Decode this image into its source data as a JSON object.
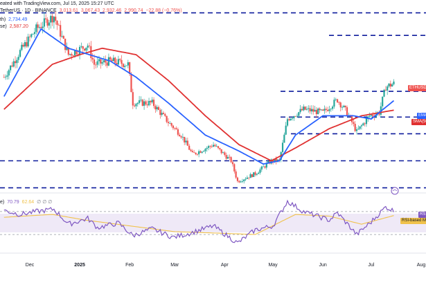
{
  "header": {
    "line1": "eated with TradingView.com, Jul 15, 2025 15:27 UTC",
    "line2_symbol": "TetherUS · 1D · BINANCE",
    "line2_o": "3,013.61",
    "line2_h": "3,067.43",
    "line2_l": "2,932.46",
    "line2_c": "2,990.74",
    "line2_chg": "−22.88 (−0.76%)",
    "line3_label": "th)",
    "line3_value": "2,734.49",
    "line4_label": "se)",
    "line4_value": "2,587.20"
  },
  "rsi_header": {
    "label": "e)",
    "value1": "70.79",
    "value2": "62.64",
    "extra": "∅ ∅ ∅"
  },
  "tags": {
    "price": "ETHUSD",
    "ema": "EMA",
    "sma": "SMA(50)",
    "rsi": "RS",
    "rsi_ma": "RSI-based M"
  },
  "colors": {
    "up": "#26a69a",
    "down": "#ef5350",
    "ema": "#2962ff",
    "sma": "#e03131",
    "rsi": "#7e57c2",
    "rsi_ma": "#f0c24b",
    "support": "#0d1b9c"
  },
  "chart_data": {
    "type": "candlestick",
    "x_ticks": [
      "Dec",
      "2025",
      "Feb",
      "Mar",
      "Apr",
      "May",
      "Jun",
      "Jul",
      "Aug"
    ],
    "x_tick_dates": [
      "2024-12-01",
      "2025-01-01",
      "2025-02-01",
      "2025-03-01",
      "2025-04-01",
      "2025-05-01",
      "2025-06-01",
      "2025-07-01",
      "2025-08-01"
    ],
    "price_range": [
      1300,
      4300
    ],
    "horizontal_levels": [
      4100,
      3750,
      2880,
      2480,
      2220,
      1800,
      1380
    ],
    "price_anchors": [
      [
        "2024-11-15",
        3100
      ],
      [
        "2024-11-25",
        3500
      ],
      [
        "2024-12-05",
        3850
      ],
      [
        "2024-12-16",
        4050
      ],
      [
        "2024-12-25",
        3450
      ],
      [
        "2025-01-06",
        3600
      ],
      [
        "2025-01-10",
        3300
      ],
      [
        "2025-01-20",
        3350
      ],
      [
        "2025-01-31",
        3300
      ],
      [
        "2025-02-03",
        2700
      ],
      [
        "2025-02-15",
        2700
      ],
      [
        "2025-02-25",
        2400
      ],
      [
        "2025-03-05",
        2200
      ],
      [
        "2025-03-12",
        1900
      ],
      [
        "2025-03-25",
        2050
      ],
      [
        "2025-04-05",
        1800
      ],
      [
        "2025-04-09",
        1480
      ],
      [
        "2025-04-20",
        1600
      ],
      [
        "2025-04-30",
        1800
      ],
      [
        "2025-05-05",
        1800
      ],
      [
        "2025-05-10",
        2450
      ],
      [
        "2025-05-20",
        2600
      ],
      [
        "2025-06-01",
        2550
      ],
      [
        "2025-06-10",
        2750
      ],
      [
        "2025-06-16",
        2550
      ],
      [
        "2025-06-22",
        2250
      ],
      [
        "2025-06-30",
        2500
      ],
      [
        "2025-07-06",
        2550
      ],
      [
        "2025-07-10",
        2950
      ],
      [
        "2025-07-15",
        3000
      ]
    ],
    "ema20_anchors": [
      [
        "2024-11-15",
        2800
      ],
      [
        "2024-12-08",
        3850
      ],
      [
        "2024-12-25",
        3550
      ],
      [
        "2025-01-20",
        3350
      ],
      [
        "2025-02-05",
        3100
      ],
      [
        "2025-02-25",
        2700
      ],
      [
        "2025-03-20",
        2200
      ],
      [
        "2025-04-10",
        1950
      ],
      [
        "2025-04-25",
        1750
      ],
      [
        "2025-05-05",
        1800
      ],
      [
        "2025-05-15",
        2200
      ],
      [
        "2025-06-01",
        2500
      ],
      [
        "2025-06-20",
        2500
      ],
      [
        "2025-07-01",
        2450
      ],
      [
        "2025-07-15",
        2734
      ]
    ],
    "sma50_anchors": [
      [
        "2024-11-15",
        2600
      ],
      [
        "2024-12-15",
        3300
      ],
      [
        "2025-01-01",
        3450
      ],
      [
        "2025-01-15",
        3550
      ],
      [
        "2025-02-05",
        3450
      ],
      [
        "2025-02-25",
        3050
      ],
      [
        "2025-03-20",
        2500
      ],
      [
        "2025-04-10",
        2050
      ],
      [
        "2025-04-30",
        1800
      ],
      [
        "2025-05-15",
        2000
      ],
      [
        "2025-06-05",
        2300
      ],
      [
        "2025-06-25",
        2500
      ],
      [
        "2025-07-15",
        2587
      ]
    ],
    "rsi_range": [
      0,
      100
    ],
    "rsi_levels": [
      70,
      30
    ],
    "rsi_anchors": [
      [
        "2024-11-15",
        72
      ],
      [
        "2024-11-25",
        65
      ],
      [
        "2024-12-05",
        70
      ],
      [
        "2024-12-16",
        74
      ],
      [
        "2024-12-25",
        48
      ],
      [
        "2025-01-06",
        58
      ],
      [
        "2025-01-12",
        42
      ],
      [
        "2025-01-25",
        50
      ],
      [
        "2025-02-03",
        28
      ],
      [
        "2025-02-15",
        40
      ],
      [
        "2025-02-28",
        25
      ],
      [
        "2025-03-10",
        32
      ],
      [
        "2025-03-25",
        45
      ],
      [
        "2025-04-09",
        15
      ],
      [
        "2025-04-20",
        38
      ],
      [
        "2025-05-01",
        45
      ],
      [
        "2025-05-10",
        88
      ],
      [
        "2025-05-20",
        70
      ],
      [
        "2025-06-05",
        55
      ],
      [
        "2025-06-10",
        68
      ],
      [
        "2025-06-22",
        30
      ],
      [
        "2025-07-01",
        52
      ],
      [
        "2025-07-10",
        78
      ],
      [
        "2025-07-15",
        71
      ]
    ],
    "rsi_ma_anchors": [
      [
        "2024-11-15",
        60
      ],
      [
        "2024-12-15",
        65
      ],
      [
        "2025-01-05",
        55
      ],
      [
        "2025-02-01",
        45
      ],
      [
        "2025-03-01",
        35
      ],
      [
        "2025-04-01",
        32
      ],
      [
        "2025-04-20",
        30
      ],
      [
        "2025-05-15",
        65
      ],
      [
        "2025-06-05",
        62
      ],
      [
        "2025-06-25",
        48
      ],
      [
        "2025-07-15",
        63
      ]
    ]
  }
}
